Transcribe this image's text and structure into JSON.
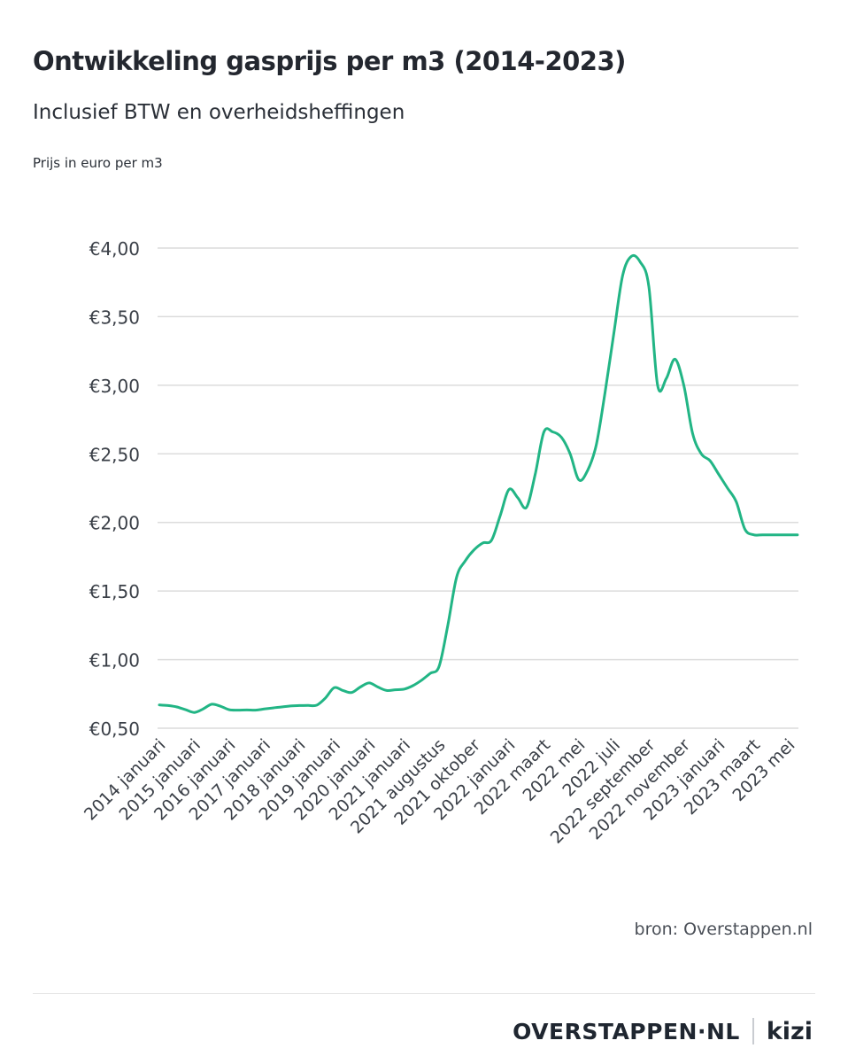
{
  "header": {
    "title": "Ontwikkeling gasprijs per m3 (2014-2023)",
    "subtitle": "Inclusief BTW en overheidsheffingen",
    "unit_note": "Prijs in euro per m3"
  },
  "footer": {
    "source": "bron: Overstappen.nl",
    "brand": "OVERSTAPPEN·NL",
    "partner": "kizi"
  },
  "colors": {
    "line": "#22b585",
    "grid": "#dcdcdc",
    "text": "#262b33"
  },
  "chart_data": {
    "type": "line",
    "title": "Ontwikkeling gasprijs per m3 (2014-2023)",
    "subtitle": "Inclusief BTW en overheidsheffingen",
    "ylabel": "Prijs in euro per m3",
    "ylim": [
      0.5,
      4.0
    ],
    "y_ticks": [
      "€0,50",
      "€1,00",
      "€1,50",
      "€2,00",
      "€2,50",
      "€3,00",
      "€3,50",
      "€4,00"
    ],
    "y_tick_values": [
      0.5,
      1.0,
      1.5,
      2.0,
      2.5,
      3.0,
      3.5,
      4.0
    ],
    "grid": true,
    "categories": [
      "2014 januari",
      "2015 januari",
      "2016 januari",
      "2017 januari",
      "2018 januari",
      "2019 januari",
      "2020 januari",
      "2021 januari",
      "2021 augustus",
      "2021 oktober",
      "2022 januari",
      "2022 maart",
      "2022 mei",
      "2022 juli",
      "2022 september",
      "2022 november",
      "2023 januari",
      "2023 maart",
      "2023 mei"
    ],
    "series": [
      {
        "values_per_step": 0.25,
        "x": [
          0,
          0.25,
          0.5,
          0.75,
          1,
          1.25,
          1.5,
          1.75,
          2,
          2.25,
          2.5,
          2.75,
          3,
          3.25,
          3.5,
          3.75,
          4,
          4.25,
          4.5,
          4.75,
          5,
          5.25,
          5.5,
          5.75,
          6,
          6.25,
          6.5,
          6.75,
          7,
          7.25,
          7.5,
          7.75,
          8,
          8.25,
          8.5,
          8.75,
          9,
          9.25,
          9.5,
          9.75,
          10,
          10.25,
          10.5,
          10.75,
          11,
          11.25,
          11.5,
          11.75,
          12,
          12.25,
          12.5,
          12.75,
          13,
          13.25,
          13.5,
          13.75,
          14,
          14.25,
          14.5,
          14.75,
          15,
          15.25,
          15.5,
          15.75,
          16,
          16.25,
          16.5,
          16.75,
          17,
          17.25,
          17.5,
          17.75,
          18,
          18.25
        ],
        "values": [
          0.67,
          0.665,
          0.655,
          0.635,
          0.615,
          0.64,
          0.675,
          0.66,
          0.635,
          0.632,
          0.633,
          0.632,
          0.64,
          0.648,
          0.655,
          0.662,
          0.665,
          0.666,
          0.668,
          0.72,
          0.795,
          0.775,
          0.76,
          0.8,
          0.83,
          0.8,
          0.775,
          0.78,
          0.785,
          0.81,
          0.85,
          0.9,
          0.95,
          1.25,
          1.6,
          1.72,
          1.8,
          1.85,
          1.87,
          2.05,
          2.24,
          2.18,
          2.11,
          2.35,
          2.66,
          2.66,
          2.62,
          2.5,
          2.31,
          2.38,
          2.57,
          2.95,
          3.38,
          3.8,
          3.94,
          3.9,
          3.72,
          3.0,
          3.05,
          3.19,
          3.0,
          2.65,
          2.5,
          2.45,
          2.35,
          2.25,
          2.15,
          1.95,
          1.91,
          1.91,
          1.91,
          1.91,
          1.91,
          1.91
        ]
      }
    ]
  }
}
